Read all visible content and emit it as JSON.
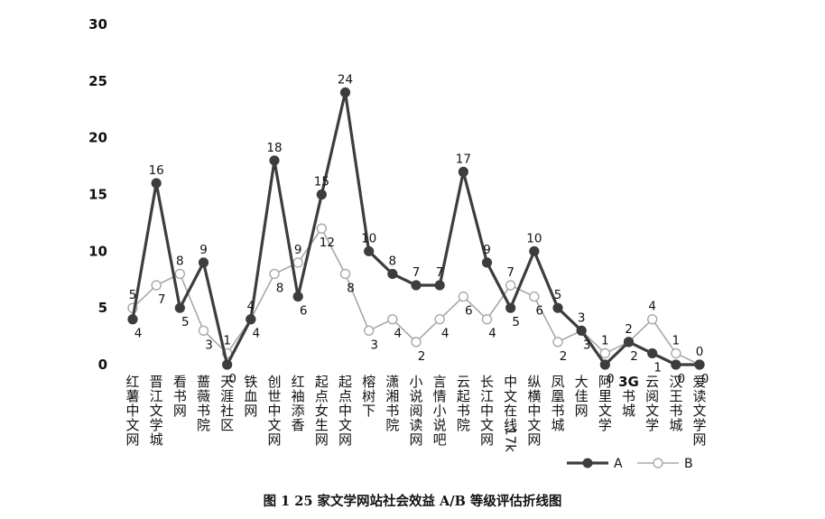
{
  "caption": "图 1    25 家文学网站社会效益 A/B 等级评估折线图",
  "chart_data": {
    "type": "line",
    "categories": [
      "红薯中文网",
      "晋江文学城",
      "看书网",
      "蔷薇书院",
      "天涯社区",
      "铁血网",
      "创世中文网",
      "红袖添香",
      "起点女生网",
      "起点中文网",
      "榕树下",
      "潇湘书院",
      "小说阅读网",
      "言情小说吧",
      "云起书院",
      "长江中文网",
      "中文在线17k",
      "纵横中文网",
      "凤凰书城",
      "大佳网",
      "阿里文学",
      "3G书城",
      "云阅文学",
      "汉王书城",
      "爱读文学网"
    ],
    "series": [
      {
        "name": "A",
        "values": [
          4,
          16,
          5,
          9,
          0,
          4,
          18,
          6,
          15,
          24,
          10,
          8,
          7,
          7,
          17,
          9,
          5,
          10,
          5,
          3,
          0,
          2,
          1,
          0,
          0
        ],
        "color": "#3d3d3d"
      },
      {
        "name": "B",
        "values": [
          5,
          7,
          8,
          3,
          1,
          4,
          8,
          9,
          12,
          8,
          3,
          4,
          2,
          4,
          6,
          4,
          7,
          6,
          2,
          3,
          1,
          2,
          4,
          1,
          0
        ],
        "color": "#a8a8a8"
      }
    ],
    "ylim": [
      0,
      30
    ],
    "yticks": [
      0,
      5,
      10,
      15,
      20,
      25,
      30
    ],
    "grid": false,
    "legend": "bottom-right"
  }
}
